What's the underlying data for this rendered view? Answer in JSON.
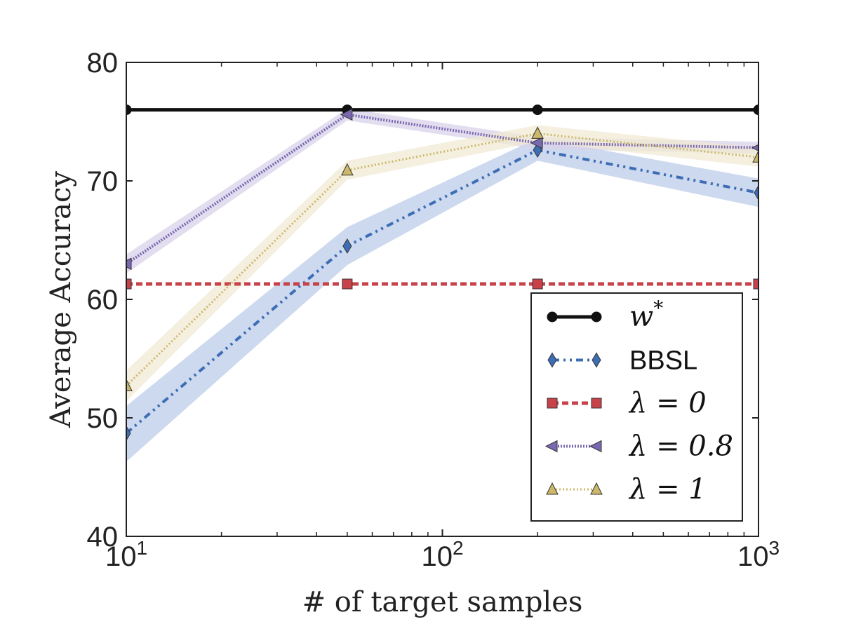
{
  "chart_data": {
    "type": "line",
    "xscale": "log",
    "xlabel": "# of target samples",
    "ylabel": "Average Accuracy",
    "xlim": [
      10,
      1000
    ],
    "ylim": [
      40,
      80
    ],
    "x_ticks": [
      {
        "value": 10,
        "base": "10",
        "exp": "1"
      },
      {
        "value": 100,
        "base": "10",
        "exp": "2"
      },
      {
        "value": 1000,
        "base": "10",
        "exp": "3"
      }
    ],
    "y_ticks": [
      40,
      50,
      60,
      70,
      80
    ],
    "grid": false,
    "legend_position": "lower-right",
    "x": [
      10,
      50,
      200,
      1000
    ],
    "series": [
      {
        "name": "w*",
        "legend_main": "w",
        "legend_sup": "*",
        "legend_style": "math",
        "color": "#111111",
        "dash": "",
        "width": 5,
        "marker": "circle",
        "values": [
          76,
          76,
          76,
          76
        ],
        "band": null
      },
      {
        "name": "BBSL",
        "legend_main": "BBSL",
        "legend_sup": "",
        "legend_style": "text",
        "color": "#3d6db5",
        "dash": "10 6 3 6 3 6",
        "width": 4,
        "marker": "diamond",
        "values": [
          48.7,
          64.5,
          72.6,
          69.0
        ],
        "band": {
          "lower": [
            46.3,
            62.9,
            71.7,
            67.8
          ],
          "upper": [
            51.0,
            66.1,
            73.6,
            70.2
          ],
          "color": "#bccce8"
        }
      },
      {
        "name": "λ = 0",
        "legend_main": "λ = 0",
        "legend_sup": "",
        "legend_style": "math",
        "color": "#c8424a",
        "dash": "9 5",
        "width": 5,
        "marker": "square",
        "values": [
          61.3,
          61.3,
          61.3,
          61.3
        ],
        "band": null
      },
      {
        "name": "λ = 0.8",
        "legend_main": "λ = 0.8",
        "legend_sup": "",
        "legend_style": "math",
        "color": "#7a68b0",
        "dash": "2 2",
        "width": 4,
        "marker": "triangle-left",
        "values": [
          63.0,
          75.6,
          73.2,
          72.8
        ],
        "band": {
          "lower": [
            62.2,
            75.1,
            72.7,
            72.3
          ],
          "upper": [
            63.8,
            76.1,
            73.7,
            73.3
          ],
          "color": "#d8d2ea"
        }
      },
      {
        "name": "λ = 1",
        "legend_main": "λ = 1",
        "legend_sup": "",
        "legend_style": "math",
        "color": "#cdb86a",
        "dash": "2 3",
        "width": 3,
        "marker": "triangle-up",
        "values": [
          52.7,
          70.9,
          74.0,
          72.0
        ],
        "band": {
          "lower": [
            51.4,
            70.1,
            73.3,
            71.2
          ],
          "upper": [
            54.0,
            71.7,
            74.7,
            72.8
          ],
          "color": "#f0ead3"
        }
      }
    ]
  }
}
